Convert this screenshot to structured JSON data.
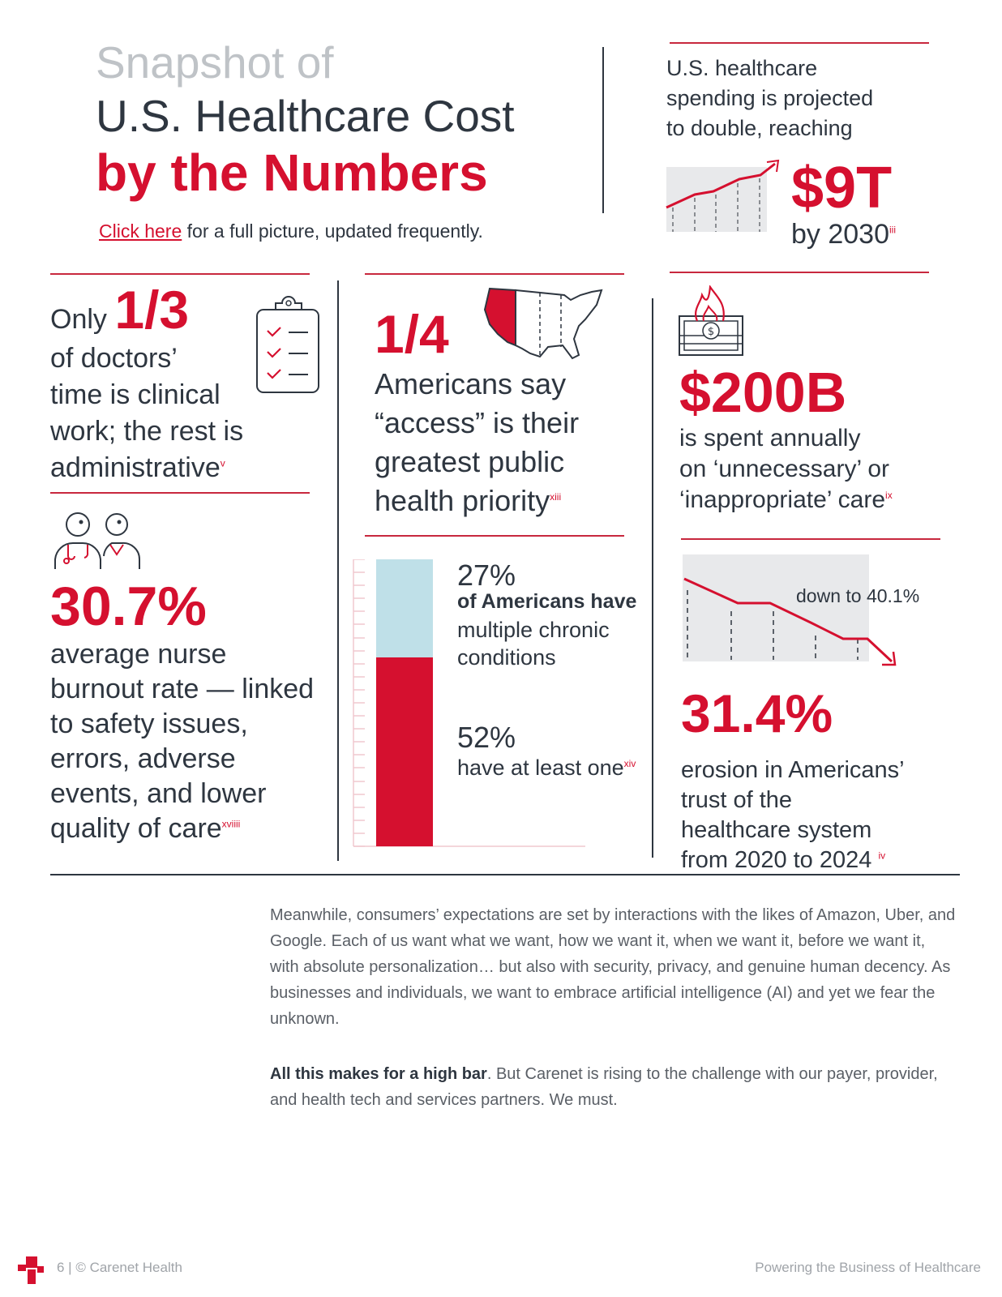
{
  "header": {
    "title_line1": "Snapshot of",
    "title_line2": "U.S. Healthcare Cost",
    "title_line3": "by the Numbers",
    "link_text": "Click here",
    "link_suffix": " for a full picture, updated frequently."
  },
  "spending": {
    "text_line1": "U.S. healthcare",
    "text_line2": "spending is projected",
    "text_line3": "to double, reaching",
    "value": "$9T",
    "year": "by 2030",
    "footnote": "iii"
  },
  "doctors": {
    "prefix": "Only ",
    "value": "1/3",
    "line1": "of doctors’",
    "line2": "time is clinical",
    "line3": "work; the rest is",
    "line4": "administrative",
    "footnote": "v"
  },
  "nurses": {
    "value": "30.7%",
    "line1": "average nurse",
    "line2": "burnout rate — linked",
    "line3": "to safety issues,",
    "line4": "errors, adverse",
    "line5": "events, and lower",
    "line6": "quality of care",
    "footnote": "xviiii"
  },
  "access": {
    "value": "1/4",
    "line1": "Americans say",
    "line2": "“access” is their",
    "line3": "greatest public",
    "line4": "health priority",
    "footnote": "xiii"
  },
  "chronic": {
    "value1": "27%",
    "label1_line1": "of Americans have",
    "label1_line2": "multiple chronic",
    "label1_line3": "conditions",
    "value2": "52%",
    "label2": "have at least one",
    "footnote": "xiv",
    "multiple_pct": 27,
    "at_least_one_pct": 52
  },
  "unnecessary": {
    "value": "$200B",
    "line1": "is spent annually",
    "line2": "on ‘unnecessary’ or",
    "line3": "‘inappropriate’ care",
    "footnote": "ix"
  },
  "trust": {
    "chart_label": "down to 40.1%",
    "value": "31.4%",
    "line1": "erosion in Americans’",
    "line2": "trust of the",
    "line3": "healthcare system",
    "line4": "from 2020 to 2024",
    "footnote": "iv"
  },
  "body": {
    "para1": "Meanwhile, consumers’ expectations are set by interactions with the likes of Amazon, Uber, and Google. Each of us want what we want, how we want it, when we want it, before we want it, with absolute personalization… but also with security, privacy, and genuine human decency. As businesses and individuals, we want to embrace artificial intelligence (AI) and yet we fear the unknown.",
    "para2_bold": "All this makes for a high bar",
    "para2_rest": ". But Carenet is rising to the challenge with our payer, provider, and health tech and services partners. We must."
  },
  "footer": {
    "left": "6 | © Carenet Health",
    "right": "Powering the Business of Healthcare"
  },
  "colors": {
    "brand_red": "#d5102f",
    "light_blue": "#bfe0e8",
    "text_dark": "#2e3640",
    "chart_gray": "#e8e9eb"
  }
}
